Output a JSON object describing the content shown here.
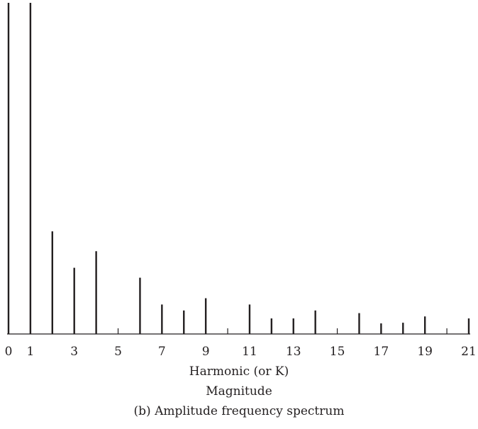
{
  "chart_data": {
    "type": "bar",
    "title": "(b) Amplitude frequency spectrum",
    "xlabel": "Harmonic (or K)",
    "ylabel": "Magnitude",
    "xlim": [
      0,
      21
    ],
    "ylim": [
      0,
      1
    ],
    "grid": false,
    "x_ticks": [
      0,
      1,
      3,
      5,
      7,
      9,
      11,
      13,
      15,
      17,
      19,
      21
    ],
    "x_tick_labels": [
      "0",
      "1",
      "3",
      "5",
      "7",
      "9",
      "11",
      "13",
      "15",
      "17",
      "19",
      "21"
    ],
    "minor_ticks": [
      5,
      10,
      15,
      20
    ],
    "x": [
      0,
      1,
      2,
      3,
      4,
      5,
      6,
      7,
      8,
      9,
      10,
      11,
      12,
      13,
      14,
      15,
      16,
      17,
      18,
      19,
      20,
      21
    ],
    "values": [
      1.0,
      1.0,
      0.31,
      0.2,
      0.25,
      0,
      0.17,
      0.089,
      0.071,
      0.108,
      0,
      0.089,
      0.047,
      0.047,
      0.071,
      0,
      0.063,
      0.032,
      0.034,
      0.053,
      0,
      0.047
    ]
  }
}
